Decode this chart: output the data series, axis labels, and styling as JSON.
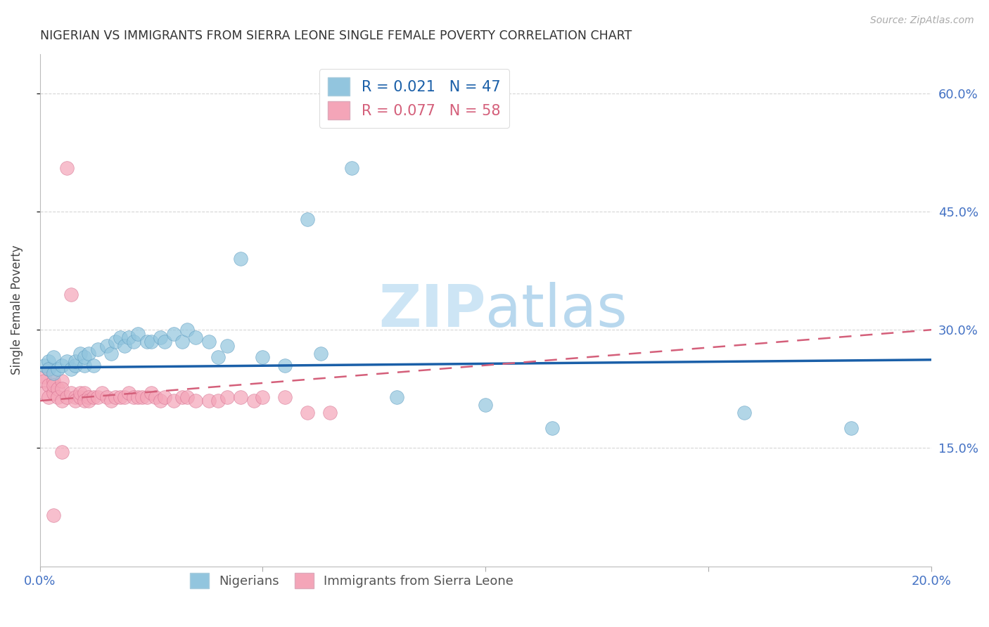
{
  "title": "NIGERIAN VS IMMIGRANTS FROM SIERRA LEONE SINGLE FEMALE POVERTY CORRELATION CHART",
  "source": "Source: ZipAtlas.com",
  "ylabel": "Single Female Poverty",
  "y_ticks_right": [
    "60.0%",
    "45.0%",
    "30.0%",
    "15.0%"
  ],
  "y_tick_values": [
    0.6,
    0.45,
    0.3,
    0.15
  ],
  "x_lim": [
    0.0,
    0.2
  ],
  "y_lim": [
    0.0,
    0.65
  ],
  "nigerian_R": 0.021,
  "nigerian_N": 47,
  "sierraleone_R": 0.077,
  "sierraleone_N": 58,
  "legend_label1": "Nigerians",
  "legend_label2": "Immigrants from Sierra Leone",
  "blue_color": "#92c5de",
  "pink_color": "#f4a5b8",
  "blue_line_color": "#1a5fa8",
  "pink_line_color": "#d45f7a",
  "grid_color": "#cccccc",
  "watermark_color": "#cde5f5",
  "title_color": "#333333",
  "axis_label_color": "#4472c4",
  "right_tick_color": "#4472c4",
  "nigerians_x": [
    0.001,
    0.002,
    0.002,
    0.003,
    0.003,
    0.004,
    0.005,
    0.006,
    0.007,
    0.008,
    0.008,
    0.009,
    0.01,
    0.01,
    0.011,
    0.012,
    0.013,
    0.015,
    0.016,
    0.017,
    0.018,
    0.019,
    0.02,
    0.021,
    0.022,
    0.024,
    0.025,
    0.027,
    0.028,
    0.03,
    0.032,
    0.033,
    0.035,
    0.038,
    0.04,
    0.042,
    0.045,
    0.05,
    0.055,
    0.06,
    0.063,
    0.07,
    0.08,
    0.1,
    0.115,
    0.158,
    0.182
  ],
  "nigerians_y": [
    0.255,
    0.26,
    0.25,
    0.265,
    0.245,
    0.25,
    0.255,
    0.26,
    0.25,
    0.255,
    0.26,
    0.27,
    0.255,
    0.265,
    0.27,
    0.255,
    0.275,
    0.28,
    0.27,
    0.285,
    0.29,
    0.28,
    0.29,
    0.285,
    0.295,
    0.285,
    0.285,
    0.29,
    0.285,
    0.295,
    0.285,
    0.3,
    0.29,
    0.285,
    0.265,
    0.28,
    0.39,
    0.265,
    0.255,
    0.44,
    0.27,
    0.505,
    0.215,
    0.205,
    0.175,
    0.195,
    0.175
  ],
  "sierraleone_x": [
    0.001,
    0.001,
    0.001,
    0.002,
    0.002,
    0.002,
    0.003,
    0.003,
    0.003,
    0.004,
    0.004,
    0.005,
    0.005,
    0.005,
    0.006,
    0.006,
    0.007,
    0.007,
    0.008,
    0.008,
    0.009,
    0.009,
    0.01,
    0.01,
    0.011,
    0.011,
    0.012,
    0.013,
    0.014,
    0.015,
    0.016,
    0.017,
    0.018,
    0.019,
    0.02,
    0.021,
    0.022,
    0.023,
    0.024,
    0.025,
    0.026,
    0.027,
    0.028,
    0.03,
    0.032,
    0.033,
    0.035,
    0.038,
    0.04,
    0.042,
    0.045,
    0.048,
    0.05,
    0.055,
    0.06,
    0.065,
    0.005,
    0.003
  ],
  "sierraleone_y": [
    0.24,
    0.235,
    0.22,
    0.25,
    0.23,
    0.215,
    0.235,
    0.22,
    0.23,
    0.225,
    0.215,
    0.235,
    0.21,
    0.225,
    0.215,
    0.505,
    0.22,
    0.345,
    0.215,
    0.21,
    0.215,
    0.22,
    0.22,
    0.21,
    0.215,
    0.21,
    0.215,
    0.215,
    0.22,
    0.215,
    0.21,
    0.215,
    0.215,
    0.215,
    0.22,
    0.215,
    0.215,
    0.215,
    0.215,
    0.22,
    0.215,
    0.21,
    0.215,
    0.21,
    0.215,
    0.215,
    0.21,
    0.21,
    0.21,
    0.215,
    0.215,
    0.21,
    0.215,
    0.215,
    0.195,
    0.195,
    0.145,
    0.065
  ],
  "nig_line_x": [
    0.0,
    0.2
  ],
  "nig_line_y": [
    0.252,
    0.262
  ],
  "sl_line_x": [
    0.0,
    0.2
  ],
  "sl_line_y": [
    0.21,
    0.3
  ]
}
